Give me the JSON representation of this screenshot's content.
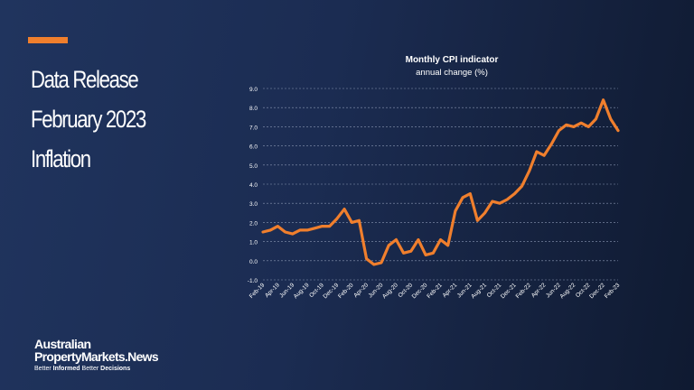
{
  "headline": {
    "line1": "Data Release",
    "line2": "February 2023",
    "line3": "Inflation"
  },
  "brand": {
    "line1": "Australian",
    "line2": "PropertyMarkets.News",
    "tagline_1": "Better ",
    "tagline_2": "Informed",
    "tagline_3": " Better ",
    "tagline_4": "Decisions"
  },
  "chart_data": {
    "type": "line",
    "title": "Monthly CPI indicator",
    "subtitle": "annual change (%)",
    "xlabel": "",
    "ylabel": "",
    "ylim": [
      -1.0,
      9.0
    ],
    "yticks": [
      "9.0",
      "8.0",
      "7.0",
      "6.0",
      "5.0",
      "4.0",
      "3.0",
      "2.0",
      "1.0",
      "0.0",
      "-1.0"
    ],
    "grid": true,
    "line_color": "#f07f2d",
    "x_tick_labels": [
      "Feb-19",
      "Apr-19",
      "Jun-19",
      "Aug-19",
      "Oct-19",
      "Dec-19",
      "Feb-20",
      "Apr-20",
      "Jun-20",
      "Aug-20",
      "Oct-20",
      "Dec-20",
      "Feb-21",
      "Apr-21",
      "Jun-21",
      "Aug-21",
      "Oct-21",
      "Dec-21",
      "Feb-22",
      "Apr-22",
      "Jun-22",
      "Aug-22",
      "Oct-22",
      "Dec-22",
      "Feb-23"
    ],
    "series": [
      {
        "values": [
          1.5,
          1.6,
          1.8,
          1.5,
          1.4,
          1.6,
          1.6,
          1.7,
          1.8,
          1.8,
          2.2,
          2.7,
          2.0,
          2.1,
          0.1,
          -0.2,
          -0.1,
          0.8,
          1.1,
          0.4,
          0.5,
          1.1,
          0.3,
          0.4,
          1.1,
          0.8,
          2.6,
          3.3,
          3.5,
          2.1,
          2.5,
          3.1,
          3.0,
          3.2,
          3.5,
          3.9,
          4.7,
          5.7,
          5.5,
          6.1,
          6.8,
          7.1,
          7.0,
          7.2,
          7.0,
          7.4,
          8.4,
          7.4,
          6.8
        ]
      }
    ]
  }
}
